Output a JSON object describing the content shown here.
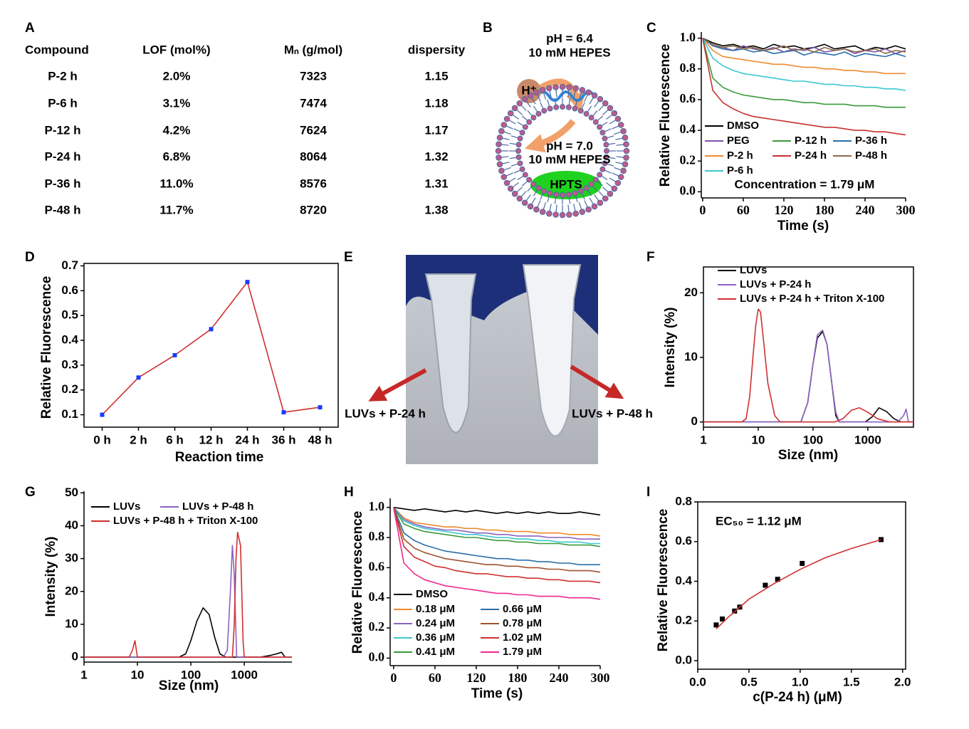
{
  "panel_labels": [
    "A",
    "B",
    "C",
    "D",
    "E",
    "F",
    "G",
    "H",
    "I"
  ],
  "table": {
    "header": [
      "Compound",
      "LOF (mol%)",
      "Mₙ (g/mol)",
      "dispersity"
    ],
    "rows": [
      [
        "P-2 h",
        "2.0%",
        "7323",
        "1.15"
      ],
      [
        "P-6 h",
        "3.1%",
        "7474",
        "1.18"
      ],
      [
        "P-12 h",
        "4.2%",
        "7624",
        "1.17"
      ],
      [
        "P-24 h",
        "6.8%",
        "8064",
        "1.32"
      ],
      [
        "P-36 h",
        "11.0%",
        "8576",
        "1.31"
      ],
      [
        "P-48 h",
        "11.7%",
        "8720",
        "1.38"
      ]
    ]
  },
  "diagram": {
    "outer_ph": "pH = 6.4",
    "outer_buffer": "10 mM HEPES",
    "proton": "H⁺",
    "inner_ph": "pH = 7.0",
    "inner_buffer": "10 mM HEPES",
    "dye": "HPTS"
  },
  "photo": {
    "labels": [
      "LUVs + P-24 h",
      "LUVs + P-48 h"
    ]
  },
  "chart_data": [
    {
      "type": "line",
      "x_label": "Time (s)",
      "y_label": "Relative Fluorescence",
      "annotation": "Concentration = 1.79 μM",
      "xlim": [
        -2,
        300
      ],
      "ylim": [
        -0.04,
        1.04
      ],
      "xticks": [
        0,
        60,
        120,
        180,
        240,
        300
      ],
      "yticks": [
        {
          "value": 0,
          "label": "0.0"
        },
        0.2,
        0.4,
        0.6,
        0.8,
        {
          "value": 1,
          "label": "1.0"
        }
      ],
      "x": [
        0,
        15,
        30,
        45,
        60,
        75,
        90,
        105,
        120,
        135,
        150,
        165,
        180,
        195,
        210,
        225,
        240,
        255,
        270,
        285,
        300
      ],
      "series": [
        {
          "name": "DMSO",
          "color": "#000000",
          "values": [
            1.0,
            0.97,
            0.95,
            0.96,
            0.94,
            0.95,
            0.93,
            0.96,
            0.94,
            0.95,
            0.93,
            0.94,
            0.96,
            0.93,
            0.94,
            0.95,
            0.92,
            0.94,
            0.93,
            0.95,
            0.93
          ]
        },
        {
          "name": "PEG",
          "color": "#7b52a8",
          "values": [
            1.0,
            0.95,
            0.94,
            0.92,
            0.95,
            0.93,
            0.92,
            0.94,
            0.91,
            0.93,
            0.92,
            0.94,
            0.91,
            0.92,
            0.93,
            0.9,
            0.92,
            0.91,
            0.93,
            0.9,
            0.92
          ]
        },
        {
          "name": "P-2 h",
          "color": "#f08a2c",
          "values": [
            1.0,
            0.92,
            0.88,
            0.87,
            0.86,
            0.85,
            0.84,
            0.83,
            0.83,
            0.82,
            0.81,
            0.81,
            0.8,
            0.8,
            0.79,
            0.79,
            0.78,
            0.78,
            0.77,
            0.77,
            0.77
          ]
        },
        {
          "name": "P-6 h",
          "color": "#3cc8d2",
          "values": [
            1.0,
            0.87,
            0.82,
            0.79,
            0.77,
            0.76,
            0.75,
            0.74,
            0.73,
            0.72,
            0.72,
            0.71,
            0.7,
            0.7,
            0.69,
            0.69,
            0.68,
            0.68,
            0.67,
            0.67,
            0.66
          ]
        },
        {
          "name": "P-12 h",
          "color": "#3a9a3a",
          "values": [
            1.0,
            0.74,
            0.68,
            0.65,
            0.63,
            0.62,
            0.61,
            0.6,
            0.6,
            0.59,
            0.58,
            0.58,
            0.57,
            0.57,
            0.57,
            0.56,
            0.56,
            0.56,
            0.55,
            0.55,
            0.55
          ]
        },
        {
          "name": "P-24 h",
          "color": "#c83232",
          "values": [
            1.0,
            0.66,
            0.58,
            0.54,
            0.51,
            0.49,
            0.48,
            0.47,
            0.46,
            0.45,
            0.44,
            0.43,
            0.42,
            0.42,
            0.41,
            0.4,
            0.4,
            0.39,
            0.39,
            0.38,
            0.37
          ]
        },
        {
          "name": "P-36 h",
          "color": "#2a6fa8",
          "values": [
            1.0,
            0.95,
            0.93,
            0.92,
            0.93,
            0.91,
            0.92,
            0.9,
            0.91,
            0.92,
            0.89,
            0.91,
            0.9,
            0.89,
            0.91,
            0.88,
            0.9,
            0.89,
            0.88,
            0.9,
            0.88
          ]
        },
        {
          "name": "P-48 h",
          "color": "#8b6a4a",
          "values": [
            1.0,
            0.96,
            0.94,
            0.95,
            0.93,
            0.94,
            0.92,
            0.93,
            0.95,
            0.92,
            0.93,
            0.91,
            0.94,
            0.92,
            0.93,
            0.91,
            0.92,
            0.93,
            0.9,
            0.92,
            0.91
          ]
        }
      ]
    },
    {
      "type": "line",
      "x_label": "Reaction time",
      "y_label": "Relative Fluorescence",
      "categories": [
        "0 h",
        "2 h",
        "6 h",
        "12 h",
        "24 h",
        "36 h",
        "48 h"
      ],
      "ylim": [
        0.05,
        0.71
      ],
      "yticks": [
        0.1,
        0.2,
        0.3,
        0.4,
        0.5,
        0.6,
        0.7
      ],
      "series": [
        {
          "color": "#d03030",
          "marker_color": "#1a3cff",
          "values": [
            0.1,
            0.25,
            0.34,
            0.445,
            0.635,
            0.11,
            0.13
          ]
        }
      ]
    },
    {
      "type": "line",
      "x_label": "Size (nm)",
      "y_label": "Intensity (%)",
      "xscale": "log",
      "xlim": [
        1,
        6800
      ],
      "ylim": [
        -0.8,
        24
      ],
      "xticks": [
        1,
        10,
        100,
        1000
      ],
      "yticks": [
        0,
        10,
        20
      ],
      "series": [
        {
          "name": "LUVs",
          "color": "#000000",
          "x": [
            1,
            60,
            80,
            100,
            120,
            150,
            180,
            220,
            260,
            300,
            900,
            1200,
            1600,
            2200,
            3000,
            4000,
            6800
          ],
          "values": [
            0,
            0,
            3,
            9,
            13,
            14,
            12,
            6,
            1,
            0,
            0,
            0.8,
            2.2,
            1.6,
            0.5,
            0,
            0
          ]
        },
        {
          "name": "LUVs + P-24 h",
          "color": "#8a63c0",
          "x": [
            1,
            60,
            80,
            100,
            120,
            150,
            180,
            220,
            260,
            300,
            3500,
            4500,
            5000,
            5500,
            6800
          ],
          "values": [
            0,
            0,
            3,
            9,
            13.5,
            14.2,
            12,
            6,
            1.5,
            0,
            0,
            1,
            2,
            0,
            0
          ]
        },
        {
          "name": "LUVs + P-24 h + Triton X-100",
          "color": "#d03030",
          "x": [
            1,
            5,
            6,
            7,
            8,
            9,
            10,
            11,
            12,
            15,
            20,
            25,
            100,
            250,
            350,
            500,
            700,
            1000,
            1500,
            2500,
            6800
          ],
          "values": [
            0,
            0,
            0.5,
            4,
            10,
            15,
            17.5,
            17,
            14,
            6,
            1,
            0,
            0,
            0,
            0.5,
            1.8,
            2.2,
            1.5,
            0.5,
            0,
            0
          ]
        }
      ]
    },
    {
      "type": "line",
      "x_label": "Size (nm)",
      "y_label": "Intensity (%)",
      "xscale": "log",
      "xlim": [
        1,
        7800
      ],
      "ylim": [
        -1.5,
        50.5
      ],
      "xticks": [
        1,
        10,
        100,
        1000
      ],
      "yticks": [
        0,
        10,
        20,
        30,
        40,
        50
      ],
      "series": [
        {
          "name": "LUVs",
          "color": "#000000",
          "x": [
            1,
            60,
            80,
            100,
            130,
            170,
            220,
            280,
            350,
            450,
            2000,
            3000,
            4000,
            5000,
            5800,
            7800
          ],
          "values": [
            0,
            0,
            1,
            5,
            11,
            15,
            13,
            6,
            1,
            0,
            0,
            0.5,
            1,
            1.5,
            0,
            0
          ]
        },
        {
          "name": "LUVs + P-48 h",
          "color": "#8a63c0",
          "x": [
            1,
            400,
            480,
            550,
            600,
            650,
            720,
            1000,
            7800
          ],
          "values": [
            0,
            0,
            2,
            20,
            34,
            25,
            0,
            0,
            0
          ]
        },
        {
          "name": "LUVs + P-48 h + Triton X-100",
          "color": "#d03030",
          "x": [
            1,
            7,
            8,
            9,
            10,
            11,
            600,
            650,
            700,
            750,
            800,
            850,
            900,
            950,
            1000,
            7800
          ],
          "values": [
            0,
            0,
            2,
            5,
            0,
            0,
            0,
            10,
            30,
            38,
            36,
            34,
            20,
            5,
            0,
            0
          ]
        }
      ]
    },
    {
      "type": "line",
      "x_label": "Time (s)",
      "y_label": "Relative Fluorescence",
      "xlim": [
        -5,
        300
      ],
      "ylim": [
        -0.05,
        1.06
      ],
      "xticks": [
        0,
        60,
        120,
        180,
        240,
        300
      ],
      "yticks": [
        {
          "value": 0,
          "label": "0.0"
        },
        0.2,
        0.4,
        0.6,
        0.8,
        {
          "value": 1,
          "label": "1.0"
        }
      ],
      "x": [
        0,
        15,
        30,
        45,
        60,
        75,
        90,
        105,
        120,
        135,
        150,
        165,
        180,
        195,
        210,
        225,
        240,
        255,
        270,
        285,
        300
      ],
      "series": [
        {
          "name": "DMSO",
          "color": "#000000",
          "values": [
            1.0,
            0.99,
            0.98,
            0.99,
            0.98,
            0.97,
            0.98,
            0.97,
            0.98,
            0.97,
            0.96,
            0.97,
            0.96,
            0.97,
            0.96,
            0.97,
            0.96,
            0.96,
            0.97,
            0.96,
            0.95
          ]
        },
        {
          "name": "0.18 μM",
          "color": "#f08a2c",
          "values": [
            1.0,
            0.93,
            0.9,
            0.89,
            0.88,
            0.87,
            0.87,
            0.86,
            0.86,
            0.85,
            0.85,
            0.84,
            0.84,
            0.84,
            0.83,
            0.83,
            0.83,
            0.82,
            0.82,
            0.82,
            0.81
          ]
        },
        {
          "name": "0.24 μM",
          "color": "#8a63c0",
          "values": [
            1.0,
            0.92,
            0.89,
            0.87,
            0.86,
            0.85,
            0.85,
            0.84,
            0.83,
            0.83,
            0.82,
            0.82,
            0.81,
            0.81,
            0.81,
            0.8,
            0.8,
            0.8,
            0.79,
            0.79,
            0.79
          ]
        },
        {
          "name": "0.36 μM",
          "color": "#3cc8d2",
          "values": [
            1.0,
            0.91,
            0.88,
            0.86,
            0.85,
            0.84,
            0.83,
            0.82,
            0.82,
            0.81,
            0.8,
            0.8,
            0.79,
            0.79,
            0.78,
            0.78,
            0.77,
            0.77,
            0.77,
            0.76,
            0.76
          ]
        },
        {
          "name": "0.41 μM",
          "color": "#3a9a3a",
          "values": [
            1.0,
            0.89,
            0.86,
            0.84,
            0.83,
            0.82,
            0.81,
            0.8,
            0.8,
            0.79,
            0.78,
            0.78,
            0.77,
            0.77,
            0.76,
            0.76,
            0.76,
            0.75,
            0.75,
            0.75,
            0.74
          ]
        },
        {
          "name": "0.66 μM",
          "color": "#2a6fa8",
          "values": [
            1.0,
            0.83,
            0.78,
            0.75,
            0.73,
            0.71,
            0.7,
            0.69,
            0.68,
            0.67,
            0.66,
            0.66,
            0.65,
            0.65,
            0.64,
            0.64,
            0.63,
            0.63,
            0.62,
            0.62,
            0.62
          ]
        },
        {
          "name": "0.78 μM",
          "color": "#a0522d",
          "values": [
            1.0,
            0.79,
            0.73,
            0.7,
            0.68,
            0.66,
            0.65,
            0.64,
            0.63,
            0.62,
            0.62,
            0.61,
            0.61,
            0.6,
            0.6,
            0.59,
            0.59,
            0.58,
            0.58,
            0.58,
            0.57
          ]
        },
        {
          "name": "1.02 μM",
          "color": "#d03030",
          "values": [
            1.0,
            0.74,
            0.67,
            0.64,
            0.61,
            0.6,
            0.58,
            0.57,
            0.56,
            0.56,
            0.55,
            0.54,
            0.54,
            0.53,
            0.53,
            0.52,
            0.52,
            0.51,
            0.51,
            0.51,
            0.5
          ]
        },
        {
          "name": "1.79 μM",
          "color": "#f0288c",
          "values": [
            1.0,
            0.63,
            0.56,
            0.52,
            0.5,
            0.48,
            0.47,
            0.46,
            0.45,
            0.44,
            0.43,
            0.43,
            0.42,
            0.42,
            0.41,
            0.41,
            0.41,
            0.4,
            0.4,
            0.4,
            0.39
          ]
        }
      ]
    },
    {
      "type": "scatter",
      "x_label": "c(P-24 h) (μM)",
      "y_label": "Relative Fluorescence",
      "annotation": "EC₅₀ = 1.12 μM",
      "xlim": [
        0,
        2.03
      ],
      "ylim": [
        -0.043,
        0.8
      ],
      "xticks": [
        {
          "value": 0,
          "label": "0.0"
        },
        0.5,
        {
          "value": 1,
          "label": "1.0"
        },
        1.5,
        {
          "value": 2,
          "label": "2.0"
        }
      ],
      "yticks": [
        {
          "value": 0,
          "label": "0.0"
        },
        0.2,
        0.4,
        0.6,
        0.8
      ],
      "series": [
        {
          "style": "points",
          "color": "#000000",
          "x": [
            0.18,
            0.24,
            0.36,
            0.41,
            0.66,
            0.78,
            1.02,
            1.79
          ],
          "values": [
            0.18,
            0.21,
            0.25,
            0.27,
            0.38,
            0.41,
            0.49,
            0.61
          ]
        },
        {
          "style": "line",
          "color": "#d03030",
          "x": [
            0.18,
            0.3,
            0.5,
            0.75,
            1.0,
            1.25,
            1.5,
            1.79
          ],
          "values": [
            0.16,
            0.22,
            0.31,
            0.39,
            0.46,
            0.52,
            0.565,
            0.61
          ]
        }
      ]
    }
  ]
}
